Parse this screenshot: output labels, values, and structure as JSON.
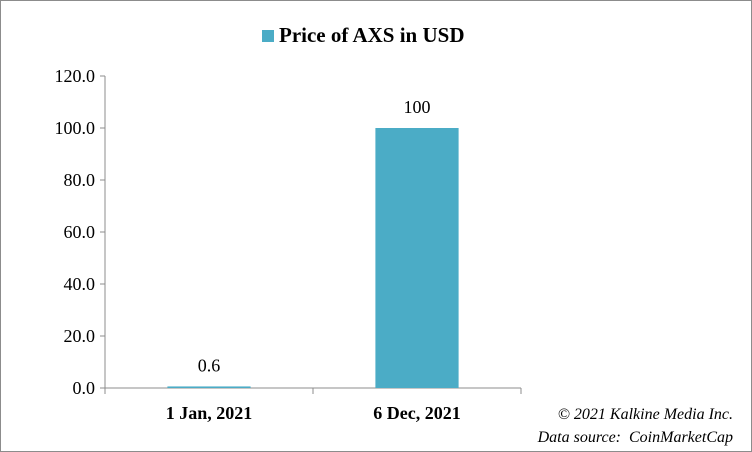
{
  "chart_data": {
    "type": "bar",
    "legend": {
      "label": "Price of AXS in USD",
      "placement": "top-center",
      "color": "#4BACC6"
    },
    "categories": [
      "1 Jan, 2021",
      "6 Dec, 2021"
    ],
    "series": [
      {
        "name": "Price of AXS in USD",
        "values": [
          0.6,
          100
        ],
        "data_labels": [
          "0.6",
          "100"
        ],
        "color": "#4BACC6"
      }
    ],
    "ylim": [
      0,
      120
    ],
    "yticks": [
      0,
      20,
      40,
      60,
      80,
      100,
      120
    ],
    "ytick_labels": [
      "0.0",
      "20.0",
      "40.0",
      "60.0",
      "80.0",
      "100.0",
      "120.0"
    ],
    "grid": false
  },
  "footer": {
    "copyright": "© 2021 Kalkine Media Inc.",
    "source": "Data source:  CoinMarketCap"
  }
}
